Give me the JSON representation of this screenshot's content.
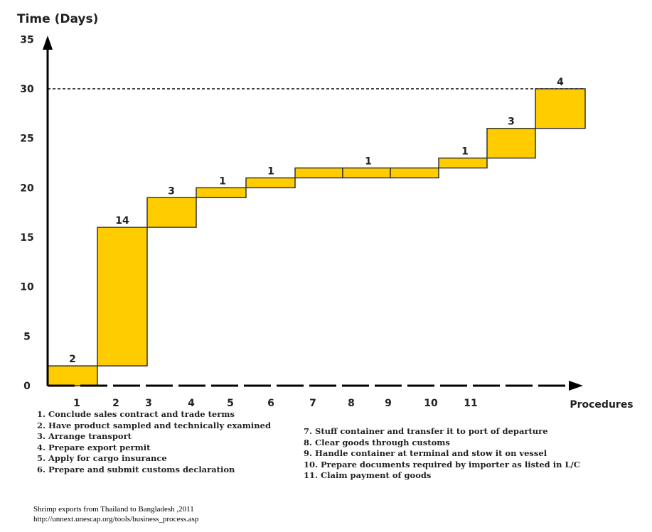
{
  "chart_data": {
    "type": "bar",
    "subtype": "cumulative-step",
    "ylabel": "Time (Days)",
    "xlabel": "Procedures",
    "ylim": [
      0,
      35
    ],
    "yticks": [
      0,
      5,
      10,
      15,
      20,
      25,
      30,
      35
    ],
    "xtick_labels": [
      "1",
      "2",
      "3",
      "4",
      "5",
      "6",
      "7",
      "8",
      "9",
      "10",
      "11"
    ],
    "reference_line": 30,
    "steps": [
      {
        "start": 0,
        "end": 2,
        "label": "2"
      },
      {
        "start": 2,
        "end": 16,
        "label": "14"
      },
      {
        "start": 16,
        "end": 19,
        "label": "3"
      },
      {
        "start": 19,
        "end": 20,
        "label": "1"
      },
      {
        "start": 20,
        "end": 21,
        "label": "1"
      },
      {
        "start": 21,
        "end": 22,
        "label": null
      },
      {
        "start": 21,
        "end": 22,
        "label": "1"
      },
      {
        "start": 21,
        "end": 22,
        "label": null
      },
      {
        "start": 22,
        "end": 23,
        "label": "1"
      },
      {
        "start": 23,
        "end": 26,
        "label": "3"
      },
      {
        "start": 26,
        "end": 30,
        "label": "4"
      }
    ],
    "bar_color": "#FFCC00"
  },
  "legend": [
    "1. Conclude sales contract and trade terms",
    "2. Have product sampled and technically examined",
    "3. Arrange transport",
    "4. Prepare export permit",
    "5. Apply for cargo insurance",
    "6. Prepare and submit customs declaration",
    "7. Stuff container and transfer it to port of departure",
    "8. Clear goods through customs",
    "9. Handle container at terminal and stow it on vessel",
    "10. Prepare documents required by importer as listed in L/C",
    "11. Claim payment of goods"
  ],
  "source": {
    "caption": "Shrimp exports from Thailand to Bangladesh ,2011",
    "url": "http://unnext.unescap.org/tools/business_process.asp"
  }
}
